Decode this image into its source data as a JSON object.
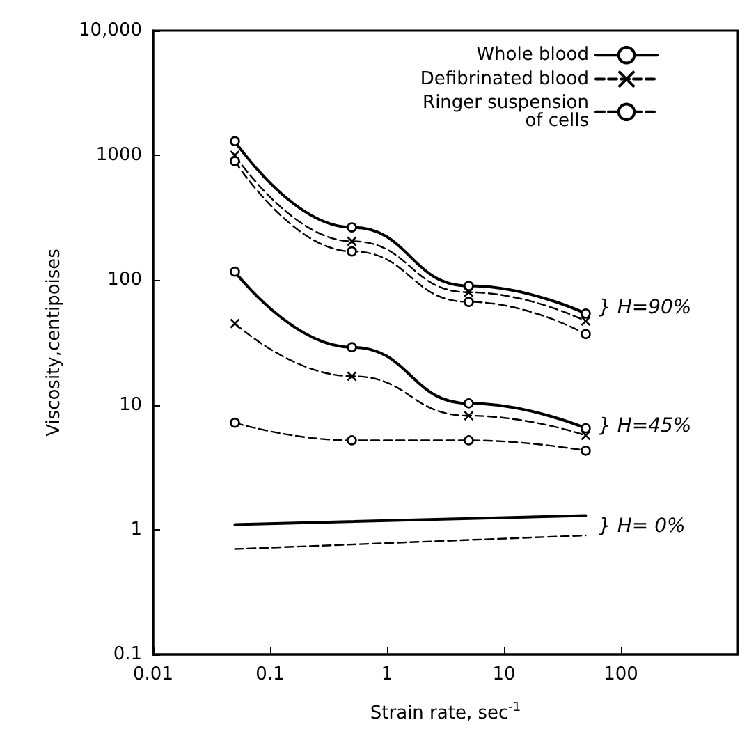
{
  "chart_data": {
    "type": "line",
    "xlabel": "Strain rate, sec$^{-1}$",
    "ylabel": "Viscosity,centipoises",
    "log": "xy",
    "grid": false,
    "legend": "top right",
    "xlim": [
      0.01,
      1000
    ],
    "xticks": [
      0.01,
      0.1,
      1,
      10,
      100
    ],
    "ylim": [
      0.1,
      10000
    ],
    "yticks": [
      0.1,
      1,
      10,
      100,
      1000,
      {
        "value": 10000,
        "label": "10,000"
      }
    ],
    "series": [
      {
        "name": "Whole blood",
        "color": "#000000",
        "marker": "circle",
        "line_style": "solid",
        "x": [
          0.05,
          0.5,
          5,
          50
        ],
        "values": [
          1300,
          265,
          90,
          54
        ]
      },
      {
        "name": "Defibrinated blood",
        "color": "#000000",
        "marker": "cross",
        "line_style": "dashed",
        "x": [
          0.05,
          0.5,
          5,
          50
        ],
        "values": [
          1000,
          205,
          80,
          47
        ]
      },
      {
        "name": "Ringer suspension of cells",
        "color": "#000000",
        "marker": "circle",
        "line_style": "dashed",
        "x": [
          0.05,
          0.5,
          5,
          50
        ],
        "values": [
          900,
          170,
          67,
          37
        ]
      },
      {
        "color": "#000000",
        "marker": "circle",
        "line_style": "solid",
        "x": [
          0.05,
          0.5,
          5,
          50
        ],
        "values": [
          117,
          29,
          10.3,
          6.5
        ]
      },
      {
        "color": "#000000",
        "marker": "cross",
        "line_style": "dashed",
        "x": [
          0.05,
          0.5,
          5,
          50
        ],
        "values": [
          45,
          17,
          8.2,
          5.7
        ]
      },
      {
        "color": "#000000",
        "marker": "circle",
        "line_style": "dashed",
        "x": [
          0.05,
          0.5,
          5,
          50
        ],
        "values": [
          7.2,
          5.2,
          5.2,
          4.3
        ]
      },
      {
        "color": "#000000",
        "marker": "none",
        "line_style": "solid",
        "x": [
          0.05,
          50
        ],
        "values": [
          1.1,
          1.3
        ]
      },
      {
        "color": "#000000",
        "marker": "none",
        "line_style": "dashed",
        "x": [
          0.05,
          50
        ],
        "values": [
          0.7,
          0.9
        ]
      }
    ],
    "annotations": [
      "} H=90%",
      "} H=45%",
      "} H= 0%"
    ]
  }
}
